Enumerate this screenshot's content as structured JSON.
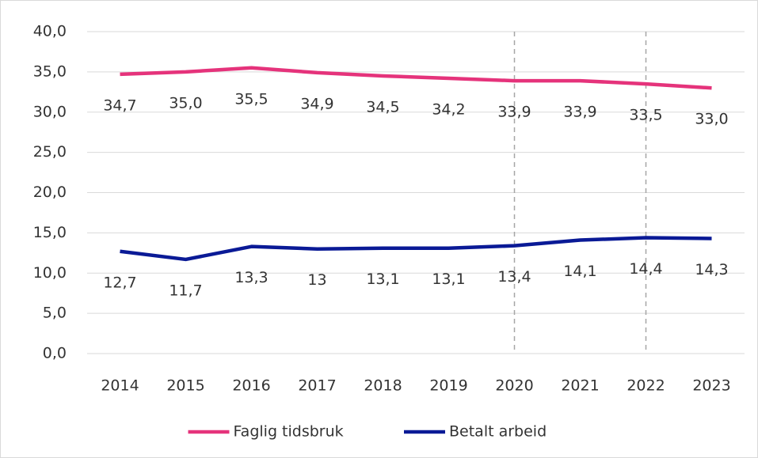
{
  "chart_data": {
    "type": "line",
    "categories": [
      "2014",
      "2015",
      "2016",
      "2017",
      "2018",
      "2019",
      "2020",
      "2021",
      "2022",
      "2023"
    ],
    "series": [
      {
        "name": "Faglig tidsbruk",
        "color": "#e5337b",
        "values": [
          34.7,
          35.0,
          35.5,
          34.9,
          34.5,
          34.2,
          33.9,
          33.9,
          33.5,
          33.0
        ],
        "value_labels": [
          "34,7",
          "35,0",
          "35,5",
          "34,9",
          "34,5",
          "34,2",
          "33,9",
          "33,9",
          "33,5",
          "33,0"
        ]
      },
      {
        "name": "Betalt arbeid",
        "color": "#0a1a96",
        "values": [
          12.7,
          11.7,
          13.3,
          13,
          13.1,
          13.1,
          13.4,
          14.1,
          14.4,
          14.3
        ],
        "value_labels": [
          "12,7",
          "11,7",
          "13,3",
          "13",
          "13,1",
          "13,1",
          "13,4",
          "14,1",
          "14,4",
          "14,3"
        ]
      }
    ],
    "ylim": [
      0,
      40
    ],
    "yticks": [
      {
        "value": 0,
        "label": "0,0"
      },
      {
        "value": 5,
        "label": "5,0"
      },
      {
        "value": 10,
        "label": "10,0"
      },
      {
        "value": 15,
        "label": "15,0"
      },
      {
        "value": 20,
        "label": "20,0"
      },
      {
        "value": 25,
        "label": "25,0"
      },
      {
        "value": 30,
        "label": "30,0"
      },
      {
        "value": 35,
        "label": "35,0"
      },
      {
        "value": 40,
        "label": "40,0"
      }
    ],
    "grid": true,
    "vlines": [
      "2020",
      "2022"
    ],
    "legend": "bottom"
  }
}
